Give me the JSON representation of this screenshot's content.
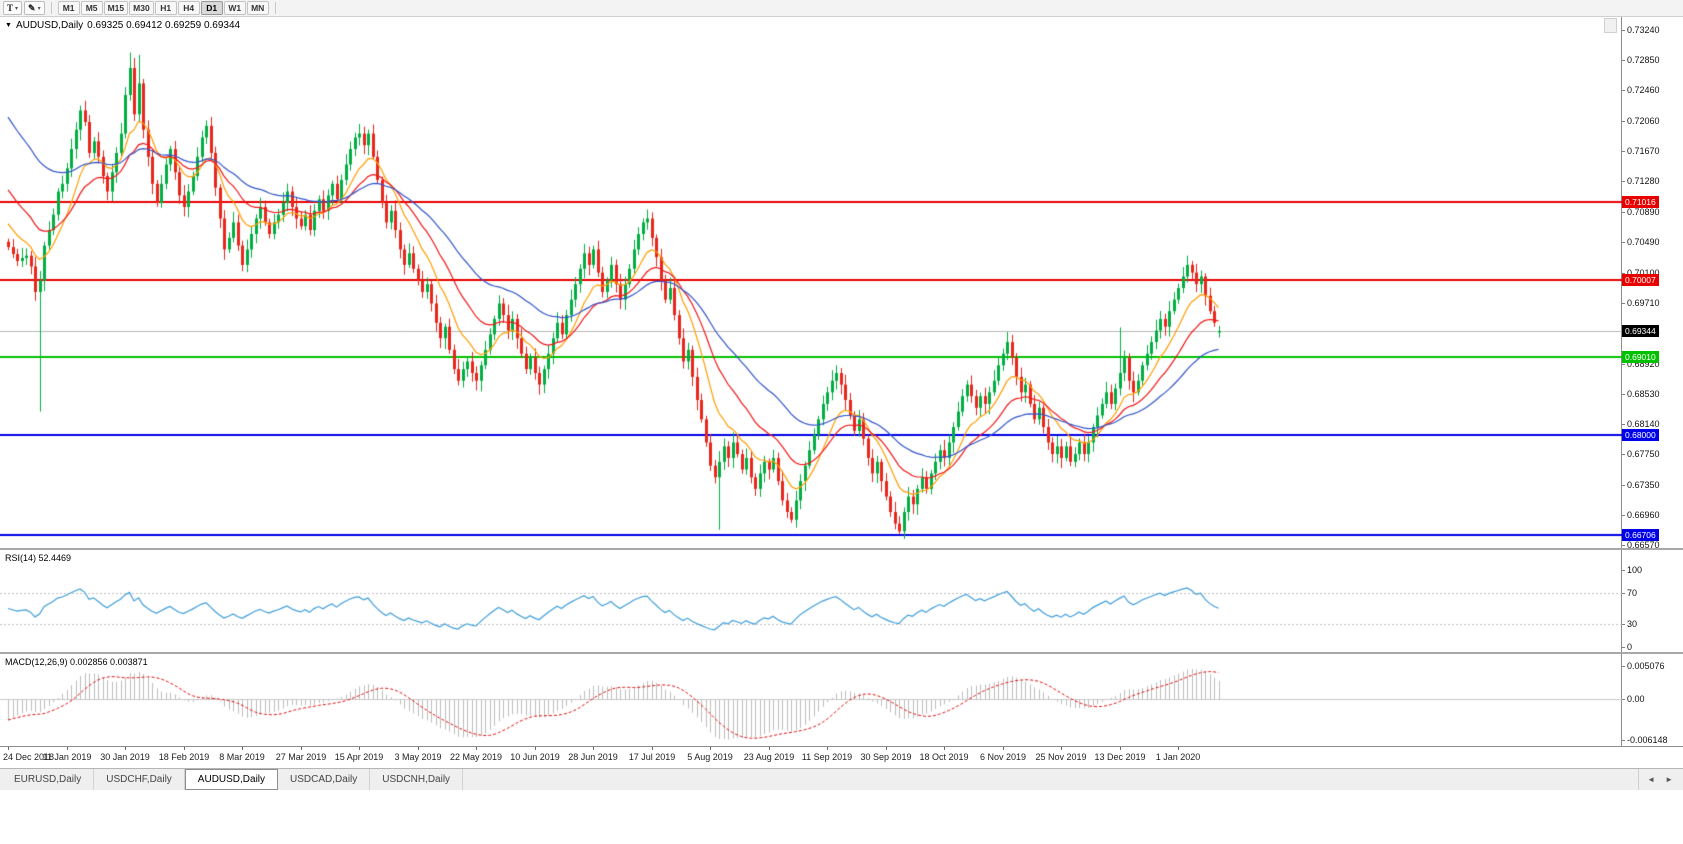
{
  "toolbar": {
    "text_tool_label": "T",
    "pen_tool_label": "✎",
    "dropdown_glyph": "▾",
    "timeframes": [
      "M1",
      "M5",
      "M15",
      "M30",
      "H1",
      "H4",
      "D1",
      "W1",
      "MN"
    ],
    "active_timeframe": "D1"
  },
  "main_chart": {
    "menu_glyph": "▼",
    "title": "AUDUSD,Daily",
    "ohlc": "0.69325 0.69412 0.69259 0.69344",
    "colors": {
      "bull": "#00ae42",
      "bear": "#e8261c",
      "bid_line": "#b8b8b8"
    },
    "bid": {
      "price": 0.69344,
      "label": "0.69344",
      "tag_color": "#000000"
    },
    "levels": [
      {
        "price": 0.71016,
        "label": "0.71016",
        "color": "#e80000"
      },
      {
        "price": 0.70007,
        "label": "0.70007",
        "color": "#e80000"
      },
      {
        "price": 0.6901,
        "label": "0.69010",
        "color": "#00c000"
      },
      {
        "price": 0.68,
        "label": "0.68000",
        "color": "#0000e8"
      },
      {
        "price": 0.66706,
        "label": "0.66706",
        "color": "#0000e8"
      }
    ],
    "price_axis": {
      "ticks": [
        "0.73240",
        "0.72850",
        "0.72460",
        "0.72060",
        "0.71670",
        "0.71280",
        "0.70890",
        "0.70490",
        "0.70100",
        "0.69710",
        "0.69320",
        "0.68920",
        "0.68530",
        "0.68140",
        "0.67750",
        "0.67350",
        "0.66960",
        "0.66570"
      ]
    }
  },
  "indicators": {
    "rsi": {
      "label": "RSI(14) 52.4469",
      "period": 14,
      "value": 52.4469,
      "axis_labels": [
        "100",
        "70",
        "30",
        "0"
      ],
      "upper_level": 70,
      "lower_level": 30,
      "color": "#3f9edb",
      "level_color": "#c0c0c0"
    },
    "macd": {
      "label": "MACD(12,26,9) 0.002856 0.003871",
      "fast": 12,
      "slow": 26,
      "signal": 9,
      "value_main": 0.002856,
      "value_signal": 0.003871,
      "axis_labels": [
        "0.005076",
        "0.00",
        "-0.006148"
      ],
      "axis_max": 0.005076,
      "axis_min": -0.006148,
      "histogram_color": "#bdbdbd",
      "signal_color": "#e01010",
      "seed_fast": 0.7005,
      "seed_slow": 0.7042
    }
  },
  "tabs": {
    "items": [
      "EURUSD,Daily",
      "USDCHF,Daily",
      "AUDUSD,Daily",
      "USDCAD,Daily",
      "USDCNH,Daily"
    ],
    "active": "AUDUSD,Daily",
    "scroll_left": "◄",
    "scroll_right": "►"
  },
  "chart_data": {
    "type": "candlestick",
    "symbol": "AUDUSD",
    "timeframe": "Daily",
    "title": "AUDUSD,Daily",
    "last_bar": {
      "open": 0.69325,
      "high": 0.69412,
      "low": 0.69259,
      "close": 0.69344
    },
    "price_range": [
      0.66534,
      0.7341
    ],
    "first_open": 0.705,
    "x_labels": [
      "24 Dec 2018",
      "11 Jan 2019",
      "30 Jan 2019",
      "18 Feb 2019",
      "8 Mar 2019",
      "27 Mar 2019",
      "15 Apr 2019",
      "3 May 2019",
      "22 May 2019",
      "10 Jun 2019",
      "28 Jun 2019",
      "17 Jul 2019",
      "5 Aug 2019",
      "23 Aug 2019",
      "11 Sep 2019",
      "30 Sep 2019",
      "18 Oct 2019",
      "6 Nov 2019",
      "25 Nov 2019",
      "13 Dec 2019",
      "1 Jan 2020"
    ],
    "closes": [
      0.7043,
      0.7034,
      0.7025,
      0.7029,
      0.7032,
      0.7018,
      0.6985,
      0.7,
      0.7045,
      0.7065,
      0.7085,
      0.7115,
      0.7125,
      0.7145,
      0.717,
      0.7195,
      0.722,
      0.7205,
      0.7165,
      0.718,
      0.716,
      0.7135,
      0.7115,
      0.714,
      0.7165,
      0.719,
      0.724,
      0.7275,
      0.7215,
      0.7255,
      0.7195,
      0.716,
      0.7125,
      0.71,
      0.7125,
      0.715,
      0.717,
      0.714,
      0.711,
      0.7095,
      0.7115,
      0.7135,
      0.716,
      0.7185,
      0.72,
      0.7165,
      0.712,
      0.708,
      0.704,
      0.7055,
      0.7075,
      0.7045,
      0.702,
      0.704,
      0.706,
      0.708,
      0.7095,
      0.7075,
      0.706,
      0.7075,
      0.7085,
      0.71,
      0.7115,
      0.7095,
      0.708,
      0.707,
      0.7085,
      0.7065,
      0.709,
      0.7105,
      0.709,
      0.711,
      0.7125,
      0.7105,
      0.713,
      0.715,
      0.717,
      0.7185,
      0.719,
      0.7175,
      0.719,
      0.716,
      0.713,
      0.71,
      0.7075,
      0.709,
      0.7065,
      0.704,
      0.702,
      0.7035,
      0.7015,
      0.7,
      0.6985,
      0.6995,
      0.697,
      0.6945,
      0.6925,
      0.694,
      0.691,
      0.6885,
      0.687,
      0.6885,
      0.6895,
      0.688,
      0.687,
      0.689,
      0.691,
      0.693,
      0.695,
      0.697,
      0.6955,
      0.6935,
      0.695,
      0.6925,
      0.6905,
      0.6885,
      0.69,
      0.688,
      0.6865,
      0.6885,
      0.6905,
      0.6925,
      0.6945,
      0.693,
      0.6955,
      0.6975,
      0.6995,
      0.7015,
      0.7035,
      0.702,
      0.704,
      0.701,
      0.6985,
      0.7,
      0.702,
      0.6995,
      0.6975,
      0.6995,
      0.7015,
      0.704,
      0.706,
      0.7075,
      0.708,
      0.7055,
      0.703,
      0.7,
      0.6975,
      0.699,
      0.6955,
      0.6925,
      0.6895,
      0.691,
      0.6875,
      0.6845,
      0.682,
      0.679,
      0.676,
      0.6745,
      0.6765,
      0.6785,
      0.677,
      0.679,
      0.6775,
      0.6755,
      0.677,
      0.6745,
      0.673,
      0.675,
      0.6765,
      0.6755,
      0.677,
      0.674,
      0.6715,
      0.67,
      0.669,
      0.6715,
      0.674,
      0.676,
      0.678,
      0.68,
      0.682,
      0.684,
      0.6855,
      0.687,
      0.688,
      0.6865,
      0.6845,
      0.6825,
      0.6805,
      0.682,
      0.6795,
      0.677,
      0.675,
      0.6765,
      0.674,
      0.672,
      0.67,
      0.6685,
      0.6675,
      0.67,
      0.672,
      0.671,
      0.673,
      0.6745,
      0.673,
      0.675,
      0.6765,
      0.678,
      0.677,
      0.679,
      0.681,
      0.683,
      0.685,
      0.6865,
      0.685,
      0.6835,
      0.685,
      0.684,
      0.6855,
      0.687,
      0.689,
      0.6905,
      0.692,
      0.69,
      0.6875,
      0.6855,
      0.6865,
      0.684,
      0.682,
      0.6835,
      0.681,
      0.679,
      0.6775,
      0.6785,
      0.677,
      0.6785,
      0.6765,
      0.6775,
      0.679,
      0.6775,
      0.679,
      0.681,
      0.6825,
      0.684,
      0.6855,
      0.684,
      0.686,
      0.688,
      0.69,
      0.687,
      0.6855,
      0.687,
      0.689,
      0.6905,
      0.692,
      0.6935,
      0.695,
      0.694,
      0.696,
      0.6975,
      0.699,
      0.7005,
      0.702,
      0.701,
      0.6995,
      0.7005,
      0.698,
      0.696,
      0.6945,
      0.69344
    ],
    "wick_overrides": {
      "7": {
        "h": 0.7012,
        "l": 0.683
      },
      "27": {
        "h": 0.7295
      },
      "29": {
        "h": 0.7292
      },
      "44": {
        "h": 0.7207
      },
      "100": {
        "l": 0.6864
      },
      "118": {
        "l": 0.6852
      },
      "158": {
        "l": 0.6677
      },
      "174": {
        "l": 0.6686
      },
      "198": {
        "l": 0.6671
      },
      "247": {
        "h": 0.6939
      },
      "262": {
        "h": 0.7032
      },
      "269": {
        "o": 0.69325,
        "h": 0.69412,
        "l": 0.69259
      }
    },
    "moving_averages": [
      {
        "name": "MA-fast",
        "period": 10,
        "color": "#ff9d00",
        "seed": 0.708
      },
      {
        "name": "MA-mid",
        "period": 20,
        "color": "#f01818",
        "seed": 0.7125
      },
      {
        "name": "MA-slow",
        "period": 40,
        "color": "#3355cc",
        "seed": 0.722
      }
    ]
  }
}
